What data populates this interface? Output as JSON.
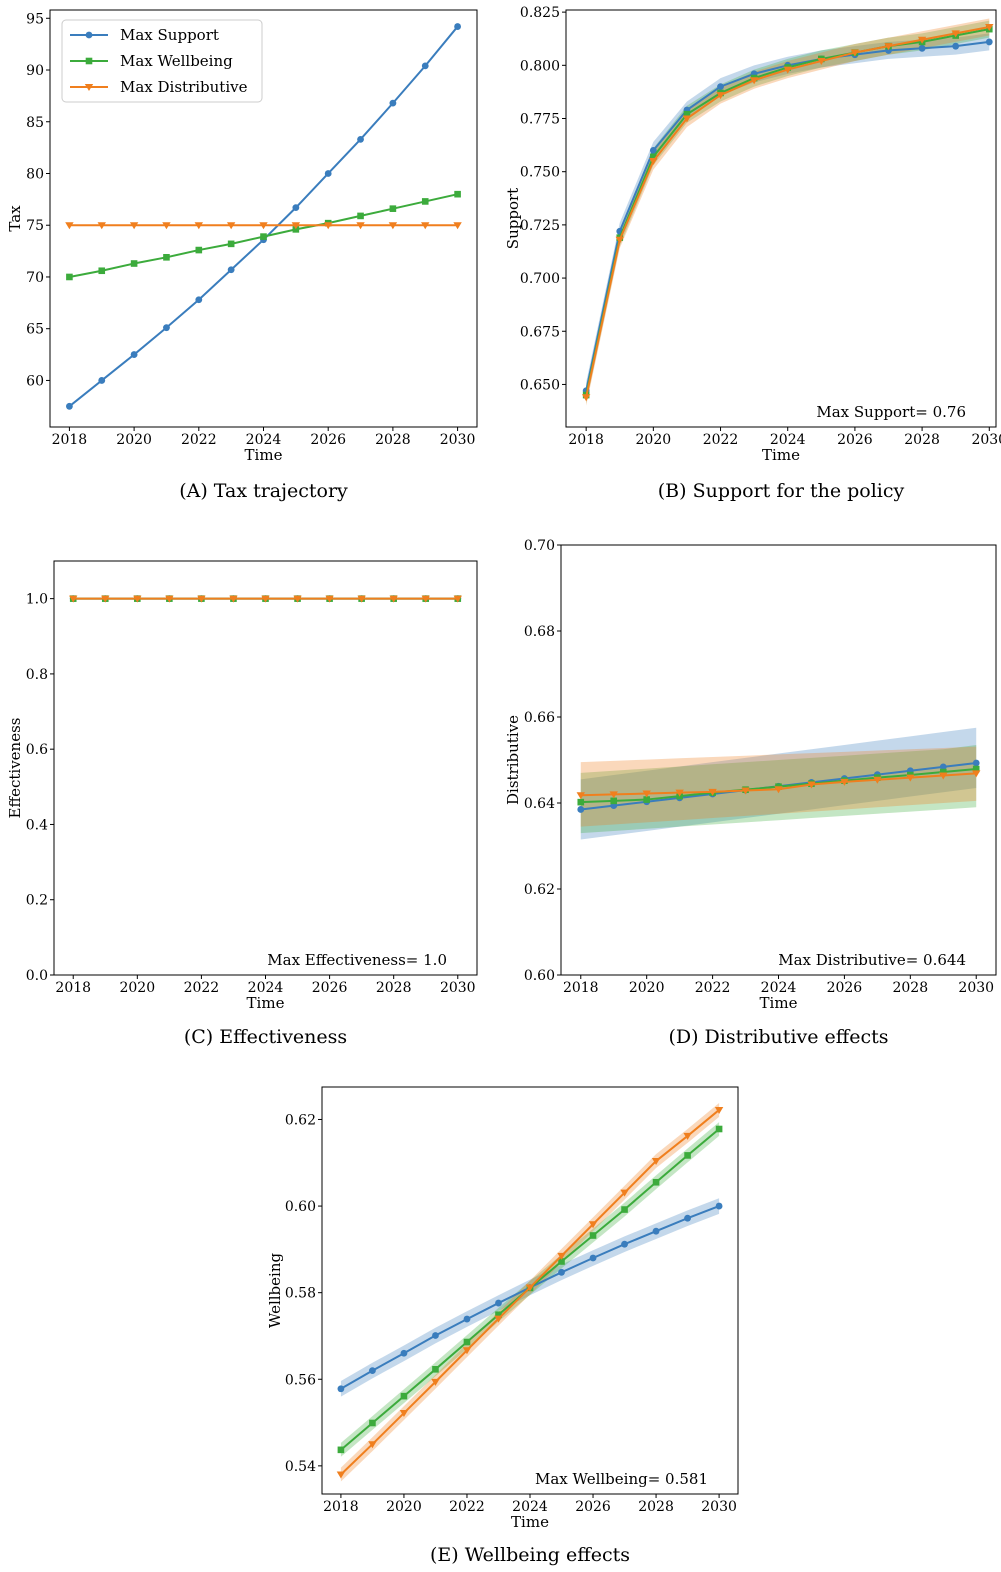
{
  "colors": {
    "support": "#3a7dbd",
    "wellbeing": "#3cab3c",
    "distributive": "#f07f1e"
  },
  "chart_data": [
    {
      "id": "A",
      "type": "line",
      "caption": "(A) Tax trajectory",
      "xlabel": "Time",
      "ylabel": "Tax",
      "xlim": [
        2017.4,
        2030.6
      ],
      "ylim": [
        55.5,
        95.8
      ],
      "xticks": [
        2018,
        2020,
        2022,
        2024,
        2026,
        2028,
        2030
      ],
      "yticks": [
        60,
        65,
        70,
        75,
        80,
        85,
        90,
        95
      ],
      "ytick_decimals": 0,
      "legend": {
        "position": "top-left",
        "entries": [
          "Max Support",
          "Max Wellbeing",
          "Max Distributive"
        ]
      },
      "x": [
        2018,
        2019,
        2020,
        2021,
        2022,
        2023,
        2024,
        2025,
        2026,
        2027,
        2028,
        2029,
        2030
      ],
      "series": [
        {
          "name": "Max Support",
          "key": "support",
          "marker": "circle",
          "values": [
            57.5,
            60.0,
            62.5,
            65.1,
            67.8,
            70.7,
            73.6,
            76.7,
            80.0,
            83.3,
            86.8,
            90.4,
            94.2
          ]
        },
        {
          "name": "Max Wellbeing",
          "key": "wellbeing",
          "marker": "square",
          "values": [
            70.0,
            70.6,
            71.3,
            71.9,
            72.6,
            73.2,
            73.9,
            74.6,
            75.2,
            75.9,
            76.6,
            77.3,
            78.0
          ]
        },
        {
          "name": "Max Distributive",
          "key": "distributive",
          "marker": "triangle-down",
          "values": [
            75.0,
            75.0,
            75.0,
            75.0,
            75.0,
            75.0,
            75.0,
            75.0,
            75.0,
            75.0,
            75.0,
            75.0,
            75.0
          ]
        }
      ]
    },
    {
      "id": "B",
      "type": "line",
      "caption": "(B) Support for the policy",
      "xlabel": "Time",
      "ylabel": "Support",
      "xlim": [
        2017.4,
        2030.2
      ],
      "ylim": [
        0.63,
        0.826
      ],
      "xticks": [
        2018,
        2020,
        2022,
        2024,
        2026,
        2028,
        2030
      ],
      "yticks": [
        0.65,
        0.675,
        0.7,
        0.725,
        0.75,
        0.775,
        0.8,
        0.825
      ],
      "ytick_decimals": 3,
      "annotation": "Max Support= 0.76",
      "x": [
        2018,
        2019,
        2020,
        2021,
        2022,
        2023,
        2024,
        2025,
        2026,
        2027,
        2028,
        2029,
        2030
      ],
      "series": [
        {
          "name": "Max Support",
          "key": "support",
          "marker": "circle",
          "band": 0.004,
          "values": [
            0.647,
            0.722,
            0.76,
            0.779,
            0.79,
            0.796,
            0.8,
            0.803,
            0.805,
            0.807,
            0.808,
            0.809,
            0.811
          ]
        },
        {
          "name": "Max Wellbeing",
          "key": "wellbeing",
          "marker": "square",
          "band": 0.004,
          "values": [
            0.645,
            0.719,
            0.757,
            0.777,
            0.787,
            0.794,
            0.799,
            0.803,
            0.806,
            0.809,
            0.811,
            0.814,
            0.817
          ]
        },
        {
          "name": "Max Distributive",
          "key": "distributive",
          "marker": "triangle-down",
          "band": 0.004,
          "values": [
            0.644,
            0.718,
            0.755,
            0.775,
            0.786,
            0.793,
            0.798,
            0.802,
            0.806,
            0.809,
            0.812,
            0.815,
            0.818
          ]
        }
      ]
    },
    {
      "id": "C",
      "type": "line",
      "caption": "(C) Effectiveness",
      "xlabel": "Time",
      "ylabel": "Effectiveness",
      "xlim": [
        2017.4,
        2030.6
      ],
      "ylim": [
        0.0,
        1.1
      ],
      "xticks": [
        2018,
        2020,
        2022,
        2024,
        2026,
        2028,
        2030
      ],
      "yticks": [
        0.0,
        0.2,
        0.4,
        0.6,
        0.8,
        1.0
      ],
      "ytick_decimals": 1,
      "annotation": "Max Effectiveness= 1.0",
      "x": [
        2018,
        2019,
        2020,
        2021,
        2022,
        2023,
        2024,
        2025,
        2026,
        2027,
        2028,
        2029,
        2030
      ],
      "series": [
        {
          "name": "Max Support",
          "key": "support",
          "marker": "circle",
          "values": [
            1,
            1,
            1,
            1,
            1,
            1,
            1,
            1,
            1,
            1,
            1,
            1,
            1
          ]
        },
        {
          "name": "Max Wellbeing",
          "key": "wellbeing",
          "marker": "square",
          "values": [
            1,
            1,
            1,
            1,
            1,
            1,
            1,
            1,
            1,
            1,
            1,
            1,
            1
          ]
        },
        {
          "name": "Max Distributive",
          "key": "distributive",
          "marker": "triangle-down",
          "values": [
            1,
            1,
            1,
            1,
            1,
            1,
            1,
            1,
            1,
            1,
            1,
            1,
            1
          ]
        }
      ]
    },
    {
      "id": "D",
      "type": "line",
      "caption": "(D) Distributive effects",
      "xlabel": "Time",
      "ylabel": "Distributive",
      "xlim": [
        2017.4,
        2030.6
      ],
      "ylim": [
        0.6,
        0.7
      ],
      "xticks": [
        2018,
        2020,
        2022,
        2024,
        2026,
        2028,
        2030
      ],
      "yticks": [
        0.6,
        0.62,
        0.64,
        0.66,
        0.68,
        0.7
      ],
      "ytick_decimals": 2,
      "annotation": "Max Distributive= 0.644",
      "x": [
        2018,
        2019,
        2020,
        2021,
        2022,
        2023,
        2024,
        2025,
        2026,
        2027,
        2028,
        2029,
        2030
      ],
      "series": [
        {
          "name": "Max Support",
          "key": "support",
          "marker": "circle",
          "band_low": [
            0.6315,
            0.6325,
            0.6335,
            0.6345,
            0.6355,
            0.6365,
            0.6375,
            0.6385,
            0.6395,
            0.6405,
            0.6415,
            0.6425,
            0.6435
          ],
          "band_high": [
            0.6455,
            0.6465,
            0.6475,
            0.6485,
            0.6495,
            0.6505,
            0.6515,
            0.6525,
            0.6535,
            0.6545,
            0.6555,
            0.6565,
            0.6575
          ],
          "values": [
            0.6385,
            0.6394,
            0.6403,
            0.6412,
            0.6421,
            0.643,
            0.6439,
            0.6448,
            0.6457,
            0.6466,
            0.6475,
            0.6484,
            0.6493
          ]
        },
        {
          "name": "Max Wellbeing",
          "key": "wellbeing",
          "marker": "square",
          "band_low": [
            0.633,
            0.6335,
            0.634,
            0.6345,
            0.635,
            0.6355,
            0.636,
            0.6365,
            0.637,
            0.6375,
            0.638,
            0.6385,
            0.639
          ],
          "band_high": [
            0.647,
            0.6475,
            0.648,
            0.6485,
            0.649,
            0.6495,
            0.65,
            0.6505,
            0.651,
            0.6515,
            0.652,
            0.6525,
            0.6535
          ],
          "values": [
            0.6402,
            0.6405,
            0.6408,
            0.6416,
            0.6424,
            0.6431,
            0.6438,
            0.6445,
            0.6452,
            0.6459,
            0.6465,
            0.6472,
            0.6479
          ]
        },
        {
          "name": "Max Distributive",
          "key": "distributive",
          "marker": "triangle-down",
          "band_low": [
            0.6345,
            0.635,
            0.6355,
            0.636,
            0.6365,
            0.637,
            0.6375,
            0.638,
            0.6385,
            0.639,
            0.6395,
            0.64,
            0.6405
          ],
          "band_high": [
            0.6495,
            0.6498,
            0.6501,
            0.6504,
            0.6507,
            0.651,
            0.6513,
            0.6516,
            0.6519,
            0.6522,
            0.6525,
            0.6528,
            0.6531
          ],
          "values": [
            0.6418,
            0.642,
            0.6422,
            0.6424,
            0.6426,
            0.6429,
            0.6432,
            0.6443,
            0.6449,
            0.6454,
            0.6459,
            0.6464,
            0.6469
          ]
        }
      ]
    },
    {
      "id": "E",
      "type": "line",
      "caption": "(E) Wellbeing effects",
      "xlabel": "Time",
      "ylabel": "Wellbeing",
      "xlim": [
        2017.4,
        2030.6
      ],
      "ylim": [
        0.5335,
        0.6275
      ],
      "xticks": [
        2018,
        2020,
        2022,
        2024,
        2026,
        2028,
        2030
      ],
      "yticks": [
        0.54,
        0.56,
        0.58,
        0.6,
        0.62
      ],
      "ytick_decimals": 2,
      "annotation": "Max Wellbeing= 0.581",
      "x": [
        2018,
        2019,
        2020,
        2021,
        2022,
        2023,
        2024,
        2025,
        2026,
        2027,
        2028,
        2029,
        2030
      ],
      "series": [
        {
          "name": "Max Support",
          "key": "support",
          "marker": "circle",
          "band": 0.0018,
          "values": [
            0.5578,
            0.562,
            0.566,
            0.5701,
            0.5739,
            0.5776,
            0.5812,
            0.5847,
            0.588,
            0.5912,
            0.5942,
            0.5972,
            0.6
          ]
        },
        {
          "name": "Max Wellbeing",
          "key": "wellbeing",
          "marker": "square",
          "band": 0.0016,
          "values": [
            0.5437,
            0.5499,
            0.5561,
            0.5623,
            0.5686,
            0.5749,
            0.5811,
            0.5872,
            0.5932,
            0.5992,
            0.6055,
            0.6117,
            0.6178
          ]
        },
        {
          "name": "Max Distributive",
          "key": "distributive",
          "marker": "triangle-down",
          "band": 0.0016,
          "values": [
            0.538,
            0.545,
            0.5522,
            0.5594,
            0.5667,
            0.574,
            0.5812,
            0.5885,
            0.5958,
            0.6031,
            0.6104,
            0.6162,
            0.6222
          ]
        }
      ]
    }
  ]
}
